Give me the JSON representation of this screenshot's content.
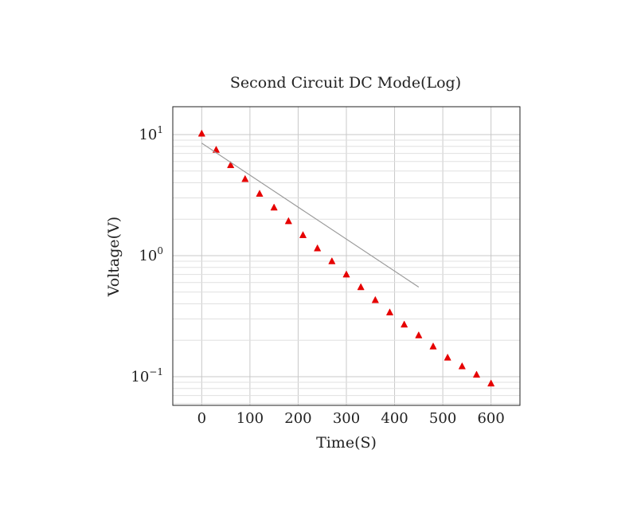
{
  "chart_data": {
    "type": "scatter",
    "title": "Second Circuit DC Mode(Log)",
    "xlabel": "Time(S)",
    "ylabel": "Voltage(V)",
    "xlim": [
      -60,
      660
    ],
    "ylim": [
      0.058,
      17
    ],
    "yscale": "log",
    "grid": true,
    "x_ticks": [
      "0",
      "100",
      "200",
      "300",
      "400",
      "500",
      "600"
    ],
    "y_ticks": [
      {
        "base": "10",
        "exp": "1",
        "value": 10
      },
      {
        "base": "10",
        "exp": "0",
        "value": 1
      },
      {
        "base": "10",
        "exp": "−1",
        "value": 0.1
      }
    ],
    "series": [
      {
        "marker": "triangle",
        "color": "#e60000",
        "x": [
          0,
          30,
          60,
          90,
          120,
          150,
          180,
          210,
          240,
          270,
          300,
          330,
          360,
          390,
          420,
          450,
          480,
          510,
          540,
          570,
          600
        ],
        "y": [
          10.2,
          7.5,
          5.6,
          4.3,
          3.25,
          2.5,
          1.93,
          1.48,
          1.15,
          0.9,
          0.7,
          0.55,
          0.43,
          0.34,
          0.27,
          0.22,
          0.178,
          0.144,
          0.122,
          0.104,
          0.088
        ]
      },
      {
        "type": "line",
        "color": "#9a9a9a",
        "x": [
          0,
          450
        ],
        "y": [
          8.5,
          0.55
        ]
      }
    ]
  }
}
